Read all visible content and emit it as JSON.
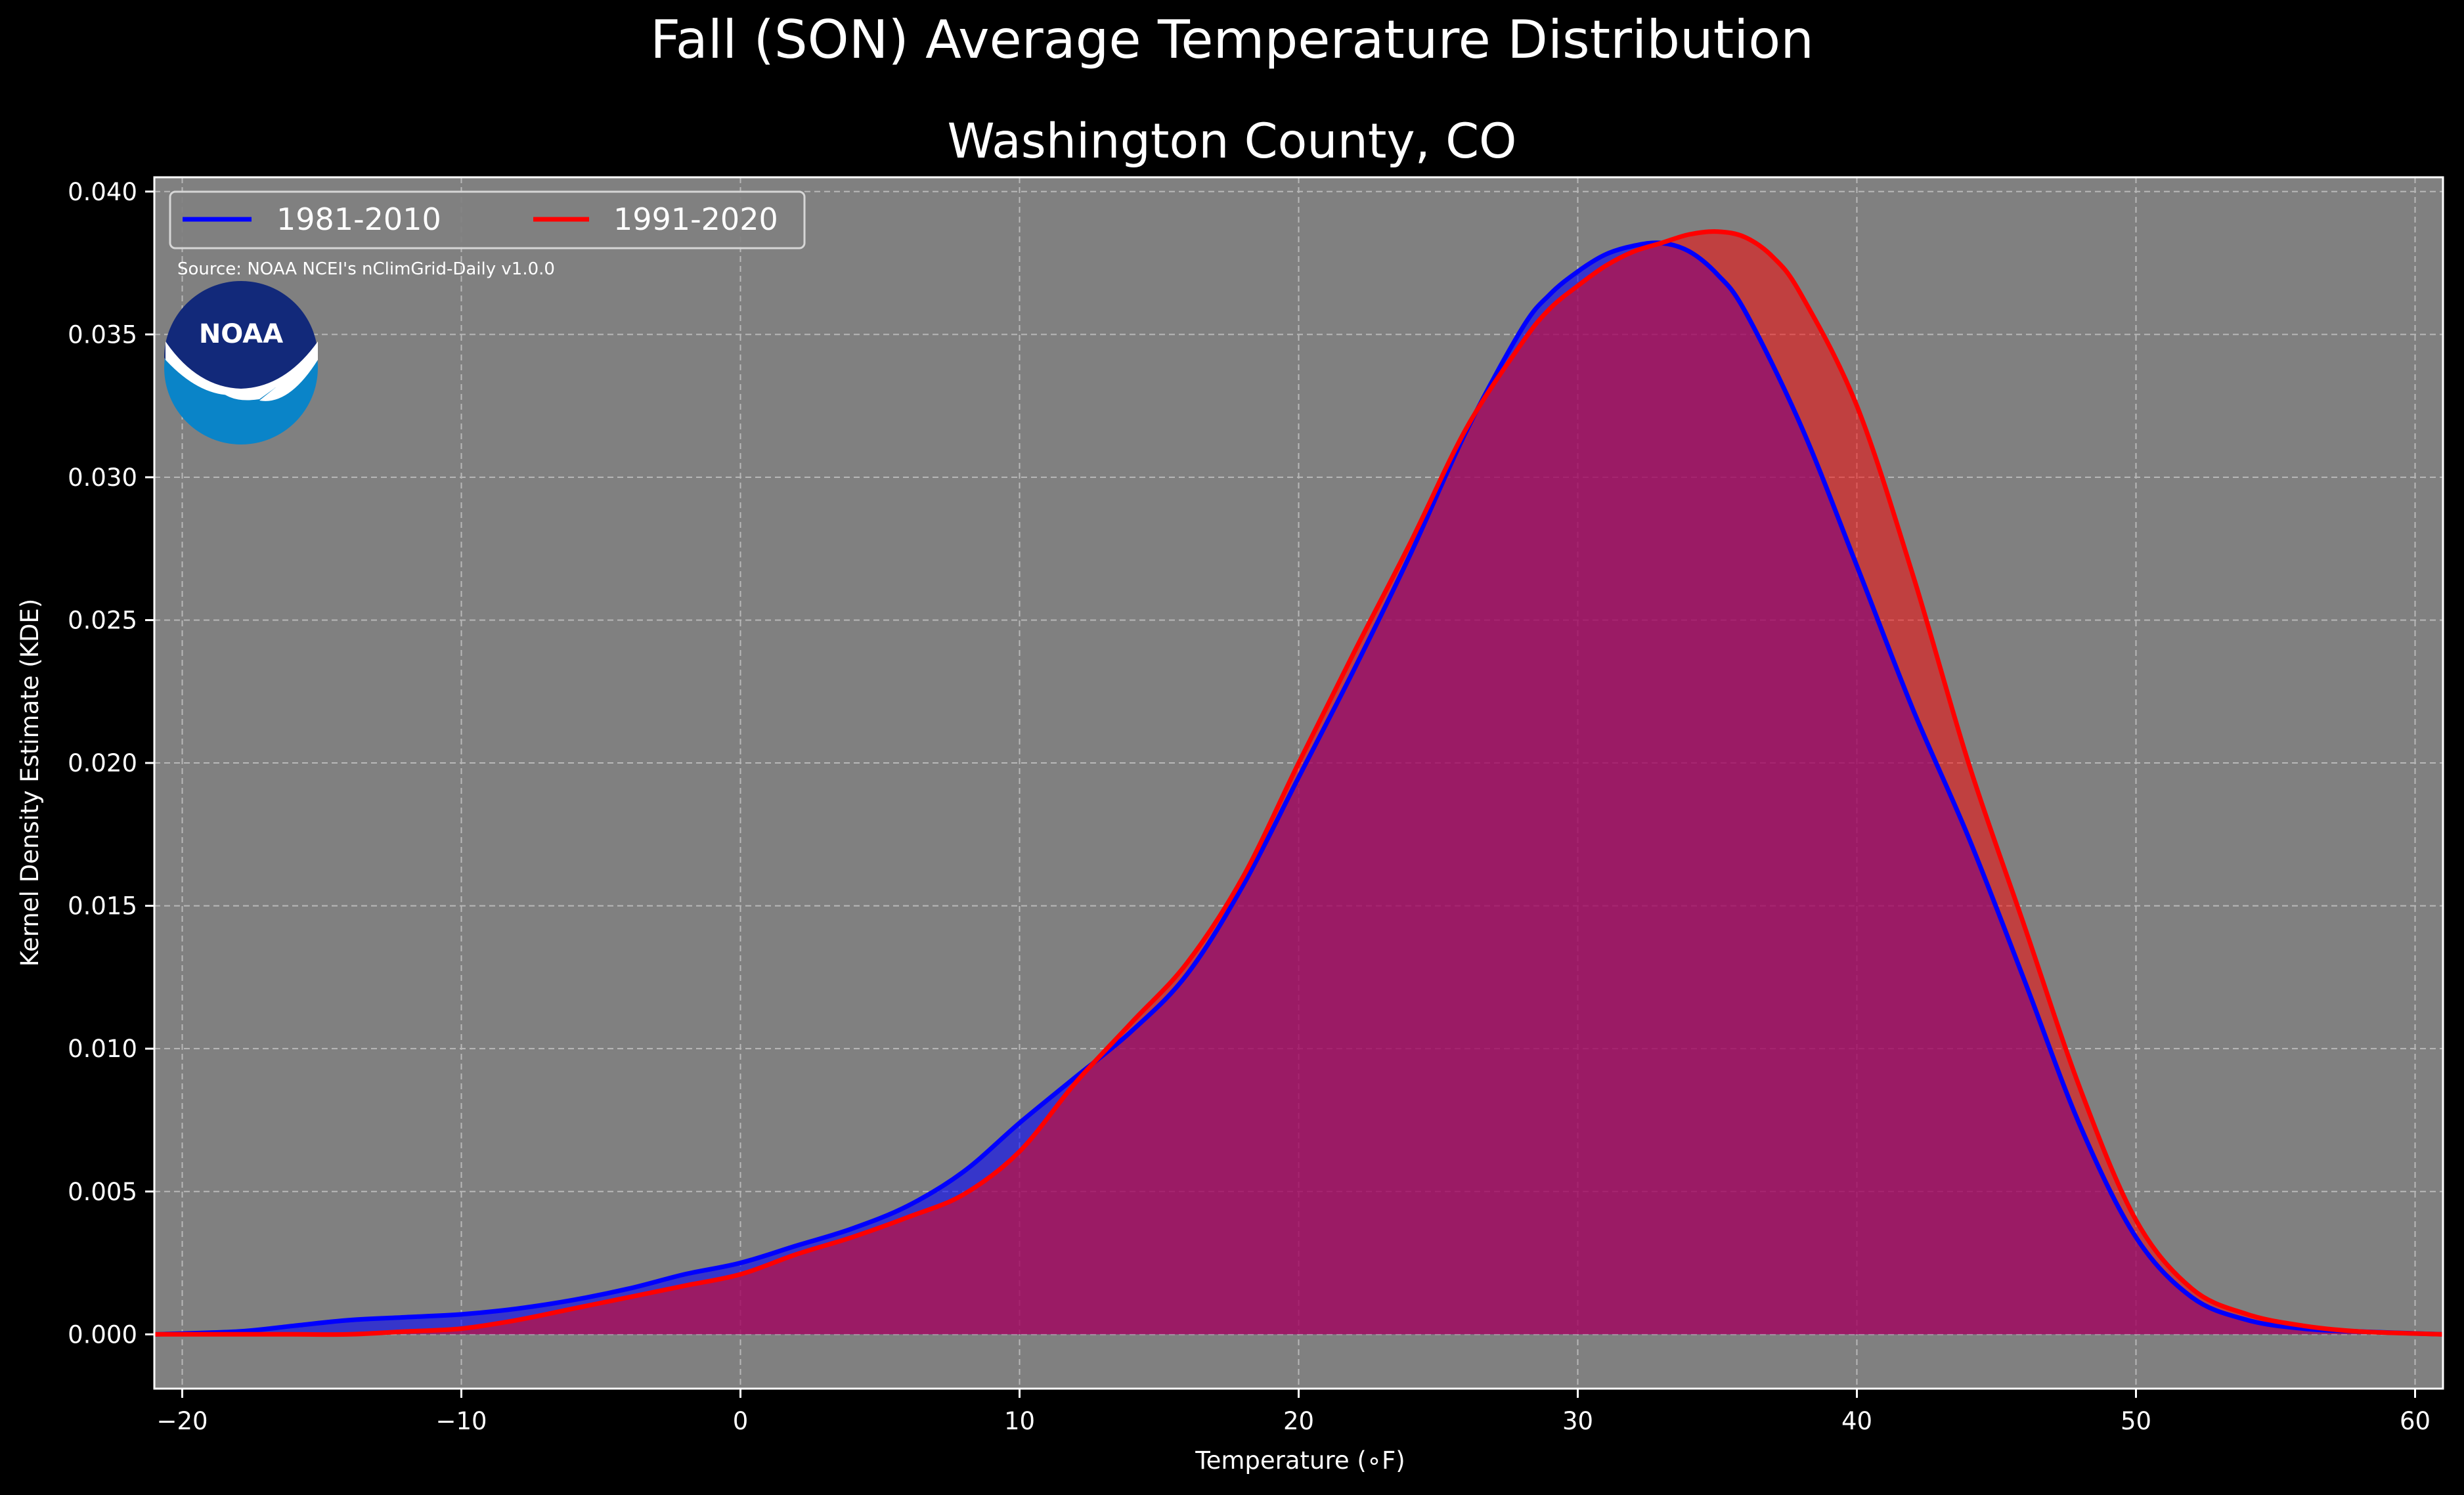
{
  "chart_data": {
    "type": "area",
    "title": "Fall (SON) Average Temperature Distribution",
    "subtitle": "Washington County, CO",
    "xlabel": "Temperature (∘F)",
    "ylabel": "Kernel Density Estimate (KDE)",
    "xlim": [
      -21,
      61
    ],
    "ylim": [
      -0.0019,
      0.0405
    ],
    "xticks": [
      -20,
      -10,
      0,
      10,
      20,
      30,
      40,
      50,
      60
    ],
    "xtick_labels": [
      "−20",
      "−10",
      "0",
      "10",
      "20",
      "30",
      "40",
      "50",
      "60"
    ],
    "yticks": [
      0.0,
      0.005,
      0.01,
      0.015,
      0.02,
      0.025,
      0.03,
      0.035,
      0.04
    ],
    "ytick_labels": [
      "0.000",
      "0.005",
      "0.010",
      "0.015",
      "0.020",
      "0.025",
      "0.030",
      "0.035",
      "0.040"
    ],
    "grid": true,
    "legend_position": "top-left",
    "annotation": "Source: NOAA NCEI's nClimGrid-Daily v1.0.0",
    "logo": "NOAA",
    "background_color": "#808080",
    "series": [
      {
        "name": "1981-2010",
        "color": "#0000ff",
        "x": [
          -21,
          -18,
          -16,
          -14,
          -12,
          -10,
          -8,
          -6,
          -4,
          -2,
          0,
          2,
          4,
          6,
          8,
          10,
          12,
          14,
          16,
          18,
          20,
          22,
          24,
          26,
          28,
          29,
          30,
          31,
          32,
          33,
          34,
          35,
          36,
          38,
          40,
          42,
          44,
          46,
          48,
          50,
          52,
          54,
          56,
          58,
          61
        ],
        "y": [
          0.0,
          0.0001,
          0.0003,
          0.0005,
          0.0006,
          0.0007,
          0.0009,
          0.0012,
          0.0016,
          0.0021,
          0.0025,
          0.0031,
          0.0037,
          0.0045,
          0.0057,
          0.0074,
          0.009,
          0.0106,
          0.0126,
          0.0157,
          0.0195,
          0.0233,
          0.0273,
          0.0316,
          0.0352,
          0.0364,
          0.0372,
          0.0378,
          0.0381,
          0.0382,
          0.0379,
          0.0371,
          0.0358,
          0.0318,
          0.0269,
          0.0219,
          0.0174,
          0.0124,
          0.0073,
          0.0034,
          0.0013,
          0.0005,
          0.0002,
          0.0001,
          0.0
        ]
      },
      {
        "name": "1991-2020",
        "color": "#ff0000",
        "x": [
          -21,
          -18,
          -16,
          -14,
          -12,
          -10,
          -8,
          -6,
          -4,
          -2,
          0,
          2,
          4,
          6,
          8,
          10,
          12,
          14,
          16,
          18,
          20,
          22,
          24,
          26,
          28,
          29,
          30,
          31,
          32,
          33,
          34,
          35,
          36,
          37,
          38,
          40,
          42,
          44,
          46,
          48,
          50,
          52,
          54,
          56,
          58,
          61
        ],
        "y": [
          0.0,
          0.0,
          0.0,
          0.0,
          0.0001,
          0.0002,
          0.0005,
          0.0009,
          0.0013,
          0.0017,
          0.0021,
          0.0028,
          0.0034,
          0.0041,
          0.0049,
          0.0064,
          0.0088,
          0.0109,
          0.013,
          0.016,
          0.02,
          0.0239,
          0.0277,
          0.0317,
          0.0347,
          0.0359,
          0.0367,
          0.0374,
          0.0379,
          0.0382,
          0.0385,
          0.0386,
          0.0384,
          0.0377,
          0.0364,
          0.0325,
          0.0266,
          0.02,
          0.0143,
          0.0086,
          0.004,
          0.0016,
          0.0007,
          0.0003,
          0.0001,
          0.0
        ]
      }
    ]
  }
}
